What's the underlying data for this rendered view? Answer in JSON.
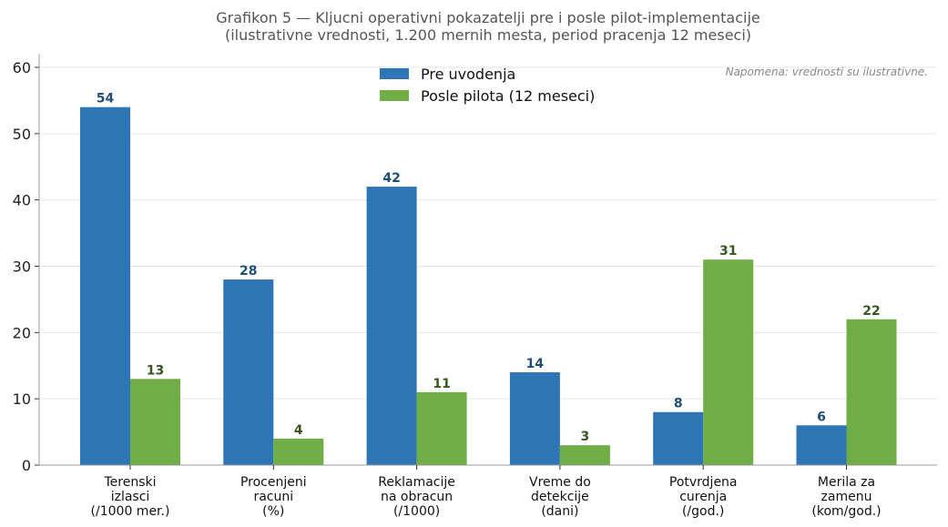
{
  "chart_data": {
    "type": "bar",
    "title": "Grafikon 5 — Kljucni operativni pokazatelji pre i posle pilot-implementacije",
    "subtitle": "(ilustrativne vrednosti, 1.200 mernih mesta, period pracenja 12 meseci)",
    "annotation": "Napomena: vrednosti su ilustrativne.",
    "categories": [
      [
        "Terenski",
        "izlasci",
        "(/1000 mer.)"
      ],
      [
        "Procenjeni",
        "racuni",
        "(%)"
      ],
      [
        "Reklamacije",
        "na obracun",
        "(/1000)"
      ],
      [
        "Vreme do",
        "detekcije",
        "(dani)"
      ],
      [
        "Potvrdjena",
        "curenja",
        "(/god.)"
      ],
      [
        "Merila za",
        "zamenu",
        "(kom/god.)"
      ]
    ],
    "series": [
      {
        "name": "Pre uvodenja",
        "values": [
          54,
          28,
          42,
          14,
          8,
          6
        ],
        "color": "#2e75b6",
        "label_color": "#1f4e79"
      },
      {
        "name": "Posle pilota (12 meseci)",
        "values": [
          13,
          4,
          11,
          3,
          31,
          22
        ],
        "color": "#70ad47",
        "label_color": "#375623"
      }
    ],
    "ylim": [
      0,
      62
    ],
    "yticks": [
      0,
      10,
      20,
      30,
      40,
      50,
      60
    ],
    "grid": true,
    "legend": "top-center"
  }
}
